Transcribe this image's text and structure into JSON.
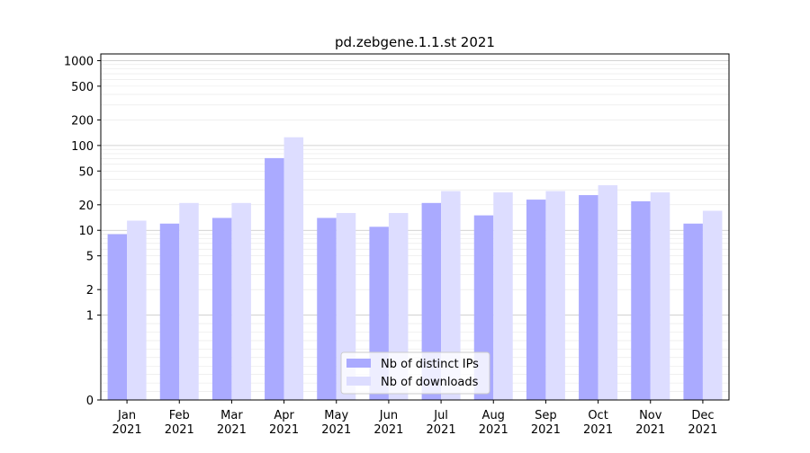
{
  "chart_data": {
    "type": "bar",
    "title": "pd.zebgene.1.1.st 2021",
    "xlabel": "",
    "ylabel": "",
    "yscale": "symlog",
    "ylim": [
      0,
      1200
    ],
    "yticks": [
      0,
      1,
      2,
      5,
      10,
      20,
      50,
      100,
      200,
      500,
      1000
    ],
    "grid": true,
    "legend_position": "lower-center",
    "categories": [
      "Jan\n2021",
      "Feb\n2021",
      "Mar\n2021",
      "Apr\n2021",
      "May\n2021",
      "Jun\n2021",
      "Jul\n2021",
      "Aug\n2021",
      "Sep\n2021",
      "Oct\n2021",
      "Nov\n2021",
      "Dec\n2021"
    ],
    "series": [
      {
        "name": "Nb of distinct IPs",
        "color": "#aaaaff",
        "values": [
          9,
          12,
          14,
          71,
          14,
          11,
          21,
          15,
          23,
          26,
          22,
          12
        ]
      },
      {
        "name": "Nb of downloads",
        "color": "#ddddff",
        "values": [
          13,
          21,
          21,
          125,
          16,
          16,
          29,
          28,
          29,
          34,
          28,
          17
        ]
      }
    ]
  }
}
